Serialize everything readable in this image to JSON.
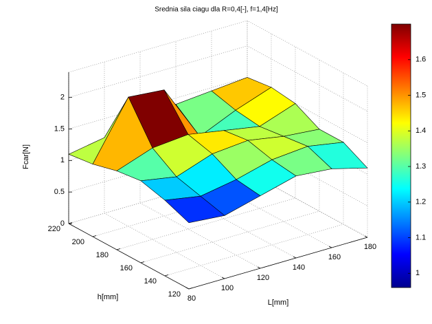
{
  "chart_data": {
    "type": "surface",
    "title": "Srednia sila ciagu dla R=0,4[-], f=1,4[Hz]",
    "x_label": "L[mm]",
    "y_label": "h[mm]",
    "z_label": "Fcar[N]",
    "x": [
      80,
      100,
      120,
      140,
      160,
      180
    ],
    "y": [
      120,
      140,
      160,
      180,
      200,
      220
    ],
    "z": [
      [
        1.05,
        1.0,
        1.15,
        1.3,
        1.25,
        1.1
      ],
      [
        1.2,
        1.1,
        1.2,
        1.35,
        1.4,
        1.3
      ],
      [
        1.3,
        1.2,
        1.4,
        1.45,
        1.35,
        1.3
      ],
      [
        1.25,
        1.45,
        1.5,
        1.4,
        1.3,
        1.5
      ],
      [
        1.15,
        2.05,
        2.0,
        1.1,
        1.35,
        1.55
      ],
      [
        1.1,
        1.2,
        1.15,
        1.4,
        1.45,
        1.5
      ]
    ],
    "xlim": [
      80,
      180
    ],
    "ylim": [
      120,
      220
    ],
    "zlim": [
      0,
      2.4
    ],
    "xticks": [
      80,
      100,
      120,
      140,
      160,
      180
    ],
    "yticks": [
      120,
      140,
      160,
      180,
      200,
      220
    ],
    "zticks": [
      0,
      0.5,
      1,
      1.5,
      2
    ],
    "colormap": "jet",
    "clim": [
      0.96,
      1.7
    ],
    "cticks": [
      1,
      1.1,
      1.2,
      1.3,
      1.4,
      1.5,
      1.6
    ],
    "grid": true
  }
}
